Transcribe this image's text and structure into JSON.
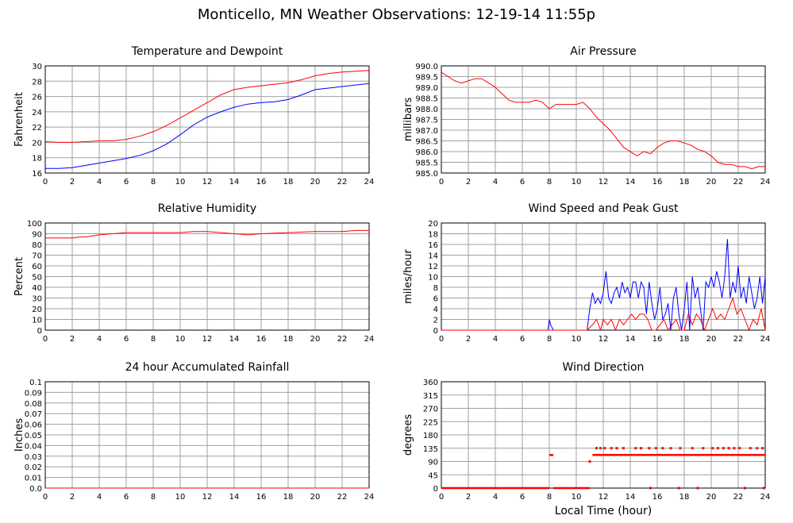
{
  "title": "Monticello, MN Weather Observations: 12-19-14 11:55p",
  "xlabel_bottom": "Local Time (hour)",
  "colors": {
    "red": "#ff0000",
    "blue": "#0000ff",
    "grid": "#a0a0a0",
    "axis": "#000000"
  },
  "chart_data": [
    {
      "type": "line",
      "title": "Temperature and Dewpoint",
      "ylabel": "Fahrenheit",
      "xlim": [
        0,
        24
      ],
      "xticks": [
        0,
        2,
        4,
        6,
        8,
        10,
        12,
        14,
        16,
        18,
        20,
        22,
        24
      ],
      "ylim": [
        16,
        30
      ],
      "yticks": [
        16,
        18,
        20,
        22,
        24,
        26,
        28,
        30
      ],
      "ytick_labels": [
        "16",
        "18",
        "20",
        "22",
        "24",
        "26",
        "28",
        "30"
      ],
      "grid": true,
      "series": [
        {
          "color": "#ff0000",
          "x": [
            0,
            1,
            2,
            3,
            4,
            5,
            6,
            7,
            8,
            9,
            10,
            11,
            12,
            13,
            14,
            15,
            16,
            17,
            18,
            19,
            20,
            21,
            22,
            23,
            24
          ],
          "y": [
            20.1,
            20.0,
            20.0,
            20.1,
            20.2,
            20.2,
            20.4,
            20.8,
            21.4,
            22.2,
            23.2,
            24.2,
            25.2,
            26.2,
            26.9,
            27.2,
            27.4,
            27.6,
            27.8,
            28.2,
            28.7,
            29.0,
            29.2,
            29.3,
            29.4
          ]
        },
        {
          "color": "#0000ff",
          "x": [
            0,
            1,
            2,
            3,
            4,
            5,
            6,
            7,
            8,
            9,
            10,
            11,
            12,
            13,
            14,
            15,
            16,
            17,
            18,
            19,
            20,
            21,
            22,
            23,
            24
          ],
          "y": [
            16.6,
            16.6,
            16.7,
            17.0,
            17.3,
            17.6,
            17.9,
            18.3,
            18.9,
            19.8,
            21.0,
            22.3,
            23.3,
            24.0,
            24.6,
            25.0,
            25.2,
            25.3,
            25.6,
            26.2,
            26.9,
            27.1,
            27.3,
            27.5,
            27.7
          ]
        }
      ]
    },
    {
      "type": "line",
      "title": "Air Pressure",
      "ylabel": "millibars",
      "xlim": [
        0,
        24
      ],
      "xticks": [
        0,
        2,
        4,
        6,
        8,
        10,
        12,
        14,
        16,
        18,
        20,
        22,
        24
      ],
      "ylim": [
        985.0,
        990.0
      ],
      "yticks": [
        985.0,
        985.5,
        986.0,
        986.5,
        987.0,
        987.5,
        988.0,
        988.5,
        989.0,
        989.5,
        990.0
      ],
      "ytick_labels": [
        "985.0",
        "985.5",
        "986.0",
        "986.5",
        "987.0",
        "987.5",
        "988.0",
        "988.5",
        "989.0",
        "989.5",
        "990.0"
      ],
      "grid": true,
      "series": [
        {
          "color": "#ff0000",
          "x": [
            0,
            0.5,
            1,
            1.5,
            2,
            2.5,
            3,
            3.5,
            4,
            4.5,
            5,
            5.5,
            6,
            6.5,
            7,
            7.5,
            8,
            8.5,
            9,
            9.5,
            10,
            10.5,
            11,
            11.5,
            12,
            12.5,
            13,
            13.5,
            14,
            14.5,
            15,
            15.5,
            16,
            16.5,
            17,
            17.5,
            18,
            18.5,
            19,
            19.5,
            20,
            20.5,
            21,
            21.5,
            22,
            22.5,
            23,
            23.5,
            24
          ],
          "y": [
            989.7,
            989.5,
            989.3,
            989.2,
            989.3,
            989.4,
            989.4,
            989.2,
            989.0,
            988.7,
            988.4,
            988.3,
            988.3,
            988.3,
            988.4,
            988.3,
            988.0,
            988.2,
            988.2,
            988.2,
            988.2,
            988.3,
            988.0,
            987.6,
            987.3,
            987.0,
            986.6,
            986.2,
            986.0,
            985.8,
            986.0,
            985.9,
            986.2,
            986.4,
            986.5,
            986.5,
            986.4,
            986.3,
            986.1,
            986.0,
            985.8,
            985.5,
            985.4,
            985.4,
            985.3,
            985.3,
            985.2,
            985.3,
            985.3
          ]
        }
      ]
    },
    {
      "type": "line",
      "title": "Relative Humidity",
      "ylabel": "Percent",
      "xlim": [
        0,
        24
      ],
      "xticks": [
        0,
        2,
        4,
        6,
        8,
        10,
        12,
        14,
        16,
        18,
        20,
        22,
        24
      ],
      "ylim": [
        0,
        100
      ],
      "yticks": [
        0,
        10,
        20,
        30,
        40,
        50,
        60,
        70,
        80,
        90,
        100
      ],
      "ytick_labels": [
        "0",
        "10",
        "20",
        "30",
        "40",
        "50",
        "60",
        "70",
        "80",
        "90",
        "100"
      ],
      "grid": true,
      "series": [
        {
          "color": "#ff0000",
          "x": [
            0,
            1,
            2,
            2.5,
            3,
            4,
            5,
            6,
            8,
            10,
            11,
            12,
            13,
            14,
            15,
            16,
            18,
            20,
            22,
            23,
            24
          ],
          "y": [
            86,
            86,
            86,
            87,
            87,
            89,
            90,
            91,
            91,
            91,
            92,
            92,
            91,
            90,
            89,
            90,
            91,
            92,
            92,
            93,
            93
          ]
        }
      ]
    },
    {
      "type": "line",
      "title": "Wind Speed and Peak Gust",
      "ylabel": "miles/hour",
      "xlim": [
        0,
        24
      ],
      "xticks": [
        0,
        2,
        4,
        6,
        8,
        10,
        12,
        14,
        16,
        18,
        20,
        22,
        24
      ],
      "ylim": [
        0,
        20
      ],
      "yticks": [
        0,
        2,
        4,
        6,
        8,
        10,
        12,
        14,
        16,
        18,
        20
      ],
      "ytick_labels": [
        "0",
        "2",
        "4",
        "6",
        "8",
        "10",
        "12",
        "14",
        "16",
        "18",
        "20"
      ],
      "grid": true,
      "series": [
        {
          "color": "#0000ff",
          "x": [
            0,
            7.9,
            8.0,
            8.1,
            8.3,
            8.4,
            10.8,
            11.0,
            11.2,
            11.4,
            11.6,
            11.8,
            12.0,
            12.2,
            12.4,
            12.6,
            12.8,
            13.0,
            13.2,
            13.4,
            13.6,
            13.8,
            14.0,
            14.2,
            14.4,
            14.6,
            14.8,
            15.0,
            15.2,
            15.4,
            15.6,
            15.8,
            16.0,
            16.2,
            16.4,
            16.6,
            16.8,
            17.0,
            17.2,
            17.4,
            17.6,
            17.8,
            18.0,
            18.2,
            18.4,
            18.6,
            18.8,
            19.0,
            19.2,
            19.4,
            19.6,
            19.8,
            20.0,
            20.2,
            20.4,
            20.6,
            20.8,
            21.0,
            21.2,
            21.4,
            21.6,
            21.8,
            22.0,
            22.2,
            22.4,
            22.6,
            22.8,
            23.0,
            23.2,
            23.4,
            23.6,
            23.8,
            24.0
          ],
          "y": [
            0,
            0,
            2,
            1,
            0,
            0,
            0,
            4,
            7,
            5,
            6,
            5,
            7,
            11,
            6,
            5,
            7,
            8,
            6,
            9,
            7,
            8,
            6,
            9,
            9,
            6,
            9,
            8,
            3,
            9,
            5,
            2,
            4,
            8,
            2,
            3,
            5,
            0,
            6,
            8,
            3,
            0,
            4,
            9,
            0,
            10,
            6,
            8,
            4,
            0,
            9,
            8,
            10,
            8,
            11,
            9,
            6,
            10,
            17,
            6,
            9,
            7,
            12,
            6,
            8,
            5,
            10,
            7,
            4,
            6,
            10,
            5,
            10
          ]
        },
        {
          "color": "#ff0000",
          "x": [
            0,
            10.8,
            11.2,
            11.5,
            11.8,
            12.0,
            12.3,
            12.6,
            12.9,
            13.2,
            13.5,
            13.8,
            14.1,
            14.4,
            14.7,
            15.0,
            15.3,
            15.6,
            15.9,
            16.2,
            16.5,
            16.8,
            17.1,
            17.4,
            17.7,
            18.0,
            18.3,
            18.6,
            18.9,
            19.2,
            19.5,
            19.8,
            20.1,
            20.4,
            20.7,
            21.0,
            21.3,
            21.6,
            21.9,
            22.2,
            22.5,
            22.8,
            23.1,
            23.4,
            23.7,
            24.0
          ],
          "y": [
            0,
            0,
            1,
            2,
            0,
            2,
            1,
            2,
            0,
            2,
            1,
            2,
            3,
            2,
            3,
            3,
            2,
            0,
            0,
            1,
            2,
            0,
            1,
            2,
            0,
            0,
            3,
            1,
            3,
            2,
            0,
            2,
            4,
            2,
            3,
            2,
            4,
            6,
            3,
            4,
            2,
            0,
            2,
            1,
            4,
            0
          ]
        }
      ]
    },
    {
      "type": "line",
      "title": "24 hour Accumulated Rainfall",
      "ylabel": "Inches",
      "xlim": [
        0,
        24
      ],
      "xticks": [
        0,
        2,
        4,
        6,
        8,
        10,
        12,
        14,
        16,
        18,
        20,
        22,
        24
      ],
      "ylim": [
        0,
        0.1
      ],
      "yticks": [
        0,
        0.01,
        0.02,
        0.03,
        0.04,
        0.05,
        0.06,
        0.07,
        0.08,
        0.09,
        0.1
      ],
      "ytick_labels": [
        "0.0",
        "0.01",
        "0.02",
        "0.03",
        "0.04",
        "0.05",
        "0.06",
        "0.07",
        "0.08",
        "0.09",
        "0.1"
      ],
      "grid": true,
      "series": [
        {
          "color": "#ff0000",
          "x": [
            0,
            24
          ],
          "y": [
            0,
            0
          ]
        }
      ]
    },
    {
      "type": "scatter",
      "title": "Wind Direction",
      "ylabel": "degrees",
      "xlim": [
        0,
        24
      ],
      "xticks": [
        0,
        2,
        4,
        6,
        8,
        10,
        12,
        14,
        16,
        18,
        20,
        22,
        24
      ],
      "ylim": [
        0,
        360
      ],
      "yticks": [
        0,
        45,
        90,
        135,
        180,
        225,
        270,
        315,
        360
      ],
      "ytick_labels": [
        "0",
        "45",
        "90",
        "135",
        "180",
        "225",
        "270",
        "315",
        "360"
      ],
      "grid": true,
      "segments": [
        {
          "color": "#ff0000",
          "y": 0,
          "x_from": 0,
          "x_to": 8.0
        },
        {
          "color": "#ff0000",
          "y": 0,
          "x_from": 8.3,
          "x_to": 11.0
        },
        {
          "color": "#ff0000",
          "y": 112,
          "x_from": 8.0,
          "x_to": 8.3
        },
        {
          "color": "#ff0000",
          "y": 112,
          "x_from": 11.2,
          "x_to": 24.0
        }
      ],
      "points": [
        {
          "x": 11.0,
          "y": 90
        },
        {
          "x": 11.5,
          "y": 135
        },
        {
          "x": 11.8,
          "y": 135
        },
        {
          "x": 12.1,
          "y": 135
        },
        {
          "x": 12.6,
          "y": 135
        },
        {
          "x": 13.0,
          "y": 135
        },
        {
          "x": 13.5,
          "y": 135
        },
        {
          "x": 14.4,
          "y": 135
        },
        {
          "x": 14.8,
          "y": 135
        },
        {
          "x": 15.4,
          "y": 135
        },
        {
          "x": 15.9,
          "y": 135
        },
        {
          "x": 16.4,
          "y": 135
        },
        {
          "x": 17.0,
          "y": 135
        },
        {
          "x": 17.7,
          "y": 135
        },
        {
          "x": 18.6,
          "y": 135
        },
        {
          "x": 19.4,
          "y": 135
        },
        {
          "x": 20.1,
          "y": 135
        },
        {
          "x": 20.5,
          "y": 135
        },
        {
          "x": 20.9,
          "y": 135
        },
        {
          "x": 21.3,
          "y": 135
        },
        {
          "x": 21.7,
          "y": 135
        },
        {
          "x": 22.1,
          "y": 135
        },
        {
          "x": 22.9,
          "y": 135
        },
        {
          "x": 23.4,
          "y": 135
        },
        {
          "x": 23.8,
          "y": 135
        },
        {
          "x": 15.5,
          "y": 0
        },
        {
          "x": 17.6,
          "y": 0
        },
        {
          "x": 19.0,
          "y": 0
        },
        {
          "x": 22.5,
          "y": 0
        },
        {
          "x": 23.9,
          "y": 0
        }
      ]
    }
  ]
}
